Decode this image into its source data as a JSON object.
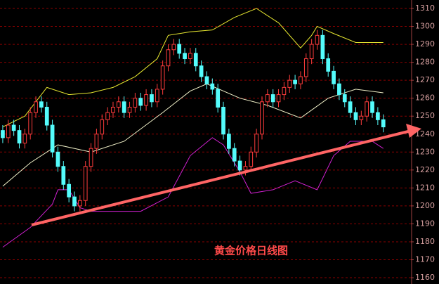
{
  "chart_data": {
    "type": "candlestick",
    "annotation": "黄金价格日线图",
    "up_color": "#ff3c3c",
    "down_color": "#54fcfc",
    "grid": true,
    "ylim": [
      1156.5,
      1314.7
    ],
    "yticks": [
      1160,
      1170,
      1180,
      1190,
      1200,
      1210,
      1220,
      1230,
      1240,
      1250,
      1260,
      1270,
      1280,
      1290,
      1300,
      1310
    ],
    "xlim": [
      -0.5,
      74
    ],
    "open": [
      1242,
      1238,
      1245,
      1242,
      1235,
      1240,
      1252,
      1258,
      1255,
      1245,
      1230,
      1222,
      1212,
      1205,
      1200,
      1203,
      1222,
      1232,
      1240,
      1248,
      1252,
      1255,
      1258,
      1252,
      1255,
      1260,
      1256,
      1262,
      1258,
      1265,
      1278,
      1287,
      1290,
      1285,
      1282,
      1285,
      1278,
      1272,
      1268,
      1265,
      1255,
      1240,
      1232,
      1225,
      1220,
      1222,
      1230,
      1240,
      1258,
      1262,
      1258,
      1262,
      1266,
      1270,
      1268,
      1272,
      1282,
      1290,
      1295,
      1282,
      1275,
      1268,
      1262,
      1258,
      1252,
      1248,
      1250,
      1258,
      1252,
      1248
    ],
    "high": [
      1245,
      1248,
      1248,
      1245,
      1243,
      1255,
      1261,
      1261,
      1258,
      1248,
      1233,
      1225,
      1215,
      1208,
      1206,
      1225,
      1235,
      1243,
      1251,
      1255,
      1258,
      1261,
      1261,
      1258,
      1263,
      1263,
      1265,
      1265,
      1268,
      1281,
      1290,
      1293,
      1293,
      1288,
      1288,
      1288,
      1281,
      1275,
      1271,
      1268,
      1258,
      1243,
      1235,
      1228,
      1225,
      1233,
      1243,
      1261,
      1265,
      1265,
      1265,
      1269,
      1273,
      1273,
      1275,
      1285,
      1293,
      1298,
      1298,
      1285,
      1278,
      1271,
      1265,
      1261,
      1255,
      1253,
      1261,
      1261,
      1255,
      1251
    ],
    "low": [
      1235,
      1235,
      1239,
      1232,
      1232,
      1237,
      1249,
      1252,
      1242,
      1227,
      1219,
      1209,
      1202,
      1197,
      1197,
      1200,
      1219,
      1229,
      1237,
      1245,
      1249,
      1252,
      1249,
      1249,
      1252,
      1253,
      1253,
      1255,
      1255,
      1262,
      1275,
      1284,
      1282,
      1279,
      1279,
      1275,
      1269,
      1265,
      1262,
      1252,
      1237,
      1229,
      1222,
      1217,
      1217,
      1219,
      1227,
      1237,
      1255,
      1255,
      1255,
      1259,
      1263,
      1265,
      1265,
      1269,
      1279,
      1287,
      1279,
      1272,
      1265,
      1259,
      1255,
      1249,
      1245,
      1245,
      1247,
      1249,
      1245,
      1241
    ],
    "close": [
      1238,
      1245,
      1242,
      1235,
      1240,
      1252,
      1258,
      1255,
      1245,
      1230,
      1222,
      1212,
      1205,
      1200,
      1203,
      1222,
      1232,
      1240,
      1248,
      1252,
      1255,
      1258,
      1252,
      1255,
      1260,
      1256,
      1262,
      1258,
      1265,
      1278,
      1287,
      1290,
      1285,
      1282,
      1285,
      1278,
      1272,
      1268,
      1265,
      1255,
      1240,
      1232,
      1225,
      1220,
      1222,
      1230,
      1240,
      1258,
      1262,
      1258,
      1262,
      1266,
      1270,
      1268,
      1272,
      1282,
      1290,
      1295,
      1282,
      1275,
      1268,
      1262,
      1258,
      1252,
      1248,
      1250,
      1258,
      1252,
      1248,
      1244
    ],
    "bands": [
      {
        "color": "#e8e830",
        "x": [
          0,
          4,
          8,
          12,
          16,
          20,
          24,
          28,
          30,
          34,
          38,
          42,
          46,
          50,
          54,
          56,
          57,
          60,
          64,
          69
        ],
        "values": [
          1244,
          1250,
          1266,
          1262,
          1263,
          1266,
          1272,
          1282,
          1295,
          1297,
          1298,
          1305,
          1310,
          1302,
          1288,
          1295,
          1300,
          1296,
          1291,
          1291
        ]
      },
      {
        "color": "#f0f0c8",
        "x": [
          0,
          5,
          10,
          16,
          22,
          29,
          34,
          37,
          43,
          48,
          54,
          59,
          64,
          69
        ],
        "values": [
          1211,
          1224,
          1234,
          1230,
          1236,
          1252,
          1264,
          1268,
          1260,
          1256,
          1249,
          1260,
          1265,
          1263
        ]
      },
      {
        "color": "#d020d0",
        "x": [
          0,
          5,
          9,
          10,
          12,
          14,
          16,
          25,
          30,
          34,
          38,
          40,
          43,
          45,
          49,
          53,
          57,
          60,
          63,
          67,
          69
        ],
        "values": [
          1177,
          1188,
          1201,
          1209,
          1209,
          1199,
          1197,
          1197,
          1205,
          1228,
          1238,
          1234,
          1219,
          1207,
          1209,
          1214,
          1209,
          1228,
          1236,
          1236,
          1232
        ]
      }
    ]
  }
}
